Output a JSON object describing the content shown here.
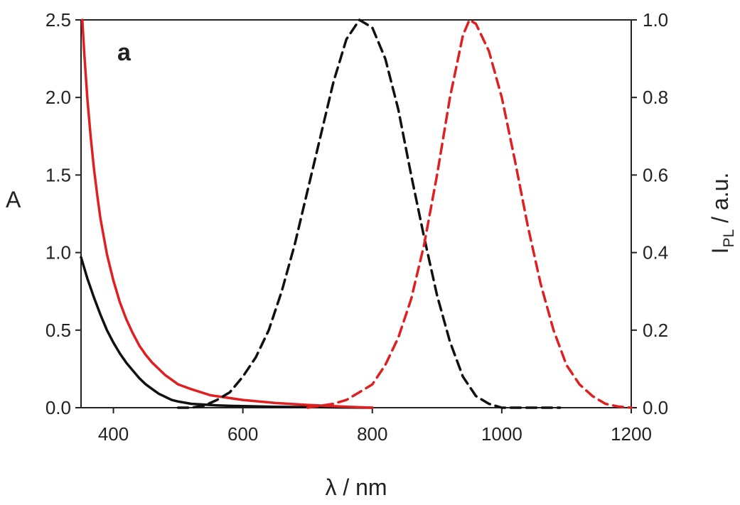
{
  "chart_data": {
    "type": "line",
    "panel_label": "a",
    "xlabel": "λ / nm",
    "ylabel_left": "A",
    "ylabel_right_main": "I",
    "ylabel_right_sub": "PL",
    "ylabel_right_rest": " / a.u.",
    "xlim": [
      350,
      1200
    ],
    "ylim_left": [
      0,
      2.5
    ],
    "ylim_right": [
      0,
      1.0
    ],
    "x_ticks": [
      {
        "value": 400,
        "label": "400"
      },
      {
        "value": 600,
        "label": "600"
      },
      {
        "value": 800,
        "label": "800"
      },
      {
        "value": 1000,
        "label": "1000"
      },
      {
        "value": 1200,
        "label": "1200"
      }
    ],
    "y_left_ticks": [
      {
        "value": 0.0,
        "label": "0.0"
      },
      {
        "value": 0.5,
        "label": "0.5"
      },
      {
        "value": 1.0,
        "label": "1.0"
      },
      {
        "value": 1.5,
        "label": "1.5"
      },
      {
        "value": 2.0,
        "label": "2.0"
      },
      {
        "value": 2.5,
        "label": "2.5"
      }
    ],
    "y_right_ticks": [
      {
        "value": 0.0,
        "label": "0.0"
      },
      {
        "value": 0.2,
        "label": "0.2"
      },
      {
        "value": 0.4,
        "label": "0.4"
      },
      {
        "value": 0.6,
        "label": "0.6"
      },
      {
        "value": 0.8,
        "label": "0.8"
      },
      {
        "value": 1.0,
        "label": "1.0"
      }
    ],
    "grid": false,
    "series": [
      {
        "key": "absorbance-black",
        "axis": "left",
        "color": "#111111",
        "style": "solid",
        "x": [
          350,
          360,
          370,
          380,
          390,
          400,
          410,
          420,
          430,
          440,
          450,
          460,
          470,
          480,
          490,
          500,
          520,
          540,
          560,
          580,
          600,
          650,
          700,
          750,
          800
        ],
        "y": [
          0.97,
          0.83,
          0.71,
          0.6,
          0.5,
          0.42,
          0.35,
          0.29,
          0.24,
          0.19,
          0.15,
          0.12,
          0.09,
          0.07,
          0.05,
          0.04,
          0.025,
          0.02,
          0.015,
          0.012,
          0.01,
          0.006,
          0.004,
          0.002,
          0.0
        ]
      },
      {
        "key": "absorbance-red",
        "axis": "left",
        "color": "#e02020",
        "style": "solid",
        "x": [
          352,
          355,
          360,
          365,
          370,
          375,
          380,
          390,
          400,
          410,
          420,
          430,
          440,
          450,
          460,
          470,
          480,
          500,
          520,
          550,
          600,
          650,
          700,
          750,
          800
        ],
        "y": [
          2.5,
          2.28,
          1.98,
          1.74,
          1.54,
          1.37,
          1.22,
          0.99,
          0.82,
          0.68,
          0.57,
          0.48,
          0.4,
          0.34,
          0.29,
          0.25,
          0.21,
          0.15,
          0.12,
          0.08,
          0.05,
          0.03,
          0.018,
          0.008,
          0.0
        ]
      },
      {
        "key": "pl-black",
        "axis": "right",
        "color": "#111111",
        "style": "dashed",
        "x": [
          500,
          520,
          540,
          560,
          580,
          600,
          620,
          640,
          660,
          680,
          700,
          720,
          740,
          760,
          780,
          800,
          820,
          840,
          860,
          880,
          900,
          920,
          940,
          960,
          980,
          1000,
          1020,
          1050,
          1090
        ],
        "y": [
          0.0,
          0.0,
          0.005,
          0.02,
          0.04,
          0.08,
          0.13,
          0.2,
          0.3,
          0.42,
          0.56,
          0.7,
          0.84,
          0.95,
          1.0,
          0.98,
          0.9,
          0.77,
          0.6,
          0.44,
          0.29,
          0.17,
          0.08,
          0.03,
          0.01,
          0.0,
          0.0,
          0.0,
          0.0
        ]
      },
      {
        "key": "pl-red",
        "axis": "right",
        "color": "#e02020",
        "style": "dashed",
        "x": [
          700,
          720,
          740,
          760,
          780,
          800,
          820,
          840,
          860,
          880,
          900,
          920,
          940,
          950,
          960,
          980,
          1000,
          1020,
          1040,
          1060,
          1080,
          1100,
          1120,
          1140,
          1160,
          1180,
          1200
        ],
        "y": [
          0.0,
          0.005,
          0.01,
          0.02,
          0.04,
          0.06,
          0.11,
          0.18,
          0.28,
          0.42,
          0.6,
          0.8,
          0.96,
          1.0,
          0.99,
          0.92,
          0.8,
          0.64,
          0.47,
          0.32,
          0.2,
          0.11,
          0.06,
          0.03,
          0.01,
          0.003,
          0.0
        ]
      }
    ]
  }
}
